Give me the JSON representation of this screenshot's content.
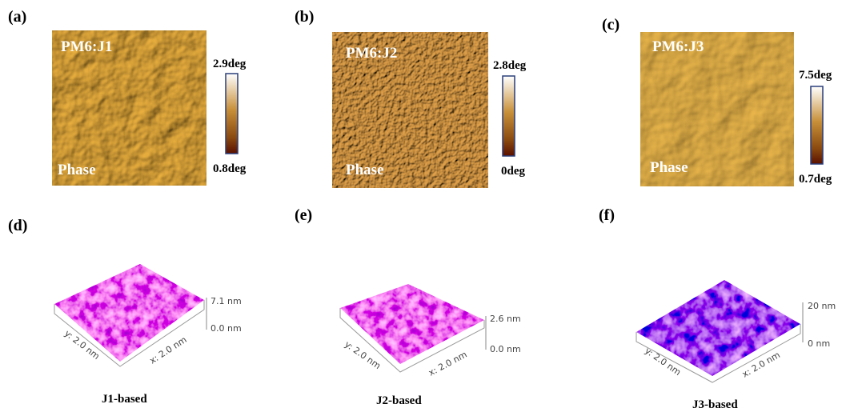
{
  "panels": [
    {
      "label": "(a)",
      "sample": "PM6:J1",
      "mode": "Phase",
      "scale_max": "2.9deg",
      "scale_min": "0.8deg"
    },
    {
      "label": "(b)",
      "sample": "PM6:J2",
      "mode": "Phase",
      "scale_max": "2.8deg",
      "scale_min": "0deg"
    },
    {
      "label": "(c)",
      "sample": "PM6:J3",
      "mode": "Phase",
      "scale_max": "7.5deg",
      "scale_min": "0.7deg"
    }
  ],
  "surfaces": [
    {
      "label": "(d)",
      "z_max": "7.1 nm",
      "z_min": "0.0 nm",
      "y_axis": "y: 2.0 nm",
      "x_axis": "x: 2.0 nm",
      "caption": "J1-based"
    },
    {
      "label": "(e)",
      "z_max": "2.6 nm",
      "z_min": "0.0 nm",
      "y_axis": "y: 2.0 nm",
      "x_axis": "x: 2.0 nm",
      "caption": "J2-based"
    },
    {
      "label": "(f)",
      "z_max": "20 nm",
      "z_min": "0 nm",
      "y_axis": "y: 2.0 nm",
      "x_axis": "x: 2.0 nm",
      "caption": "J3-based"
    }
  ]
}
